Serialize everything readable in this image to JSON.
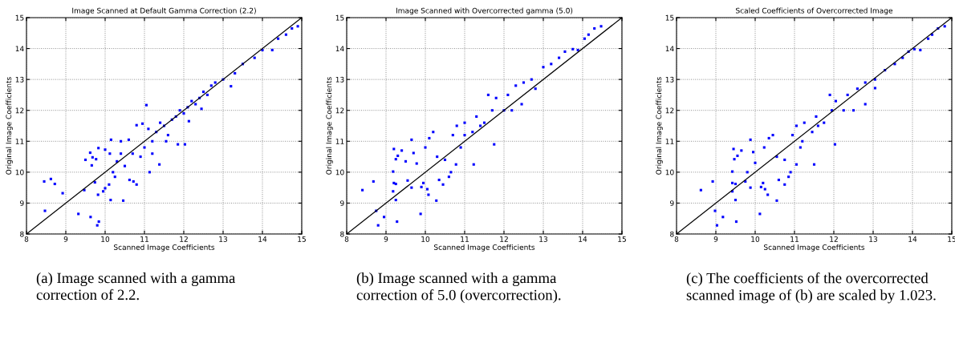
{
  "chart_data": [
    {
      "type": "scatter",
      "title": "Image Scanned at Default Gamma Correction (2.2)",
      "xlabel": "Scanned Image Coefficients",
      "ylabel": "Original Image Coefficients",
      "xlim": [
        8,
        15
      ],
      "ylim": [
        8,
        15
      ],
      "xticks": [
        8,
        9,
        10,
        11,
        12,
        13,
        14,
        15
      ],
      "yticks": [
        8,
        9,
        10,
        11,
        12,
        13,
        14,
        15
      ],
      "grid": true,
      "annotations": [
        "(a) Image scanned with a gamma correction of 2.2."
      ],
      "series": [
        {
          "type": "scatter",
          "marker": "square",
          "color": "#0000ff",
          "x": [
            8.45,
            8.62,
            8.72,
            8.92,
            8.47,
            9.32,
            9.63,
            9.8,
            9.84,
            9.47,
            9.5,
            9.62,
            9.68,
            9.77,
            9.83,
            9.66,
            9.74,
            9.82,
            9.95,
            10.0,
            10.1,
            10.14,
            10.46,
            10.15,
            10.0,
            10.12,
            10.2,
            10.25,
            10.3,
            10.4,
            10.4,
            10.5,
            10.6,
            10.62,
            10.72,
            10.8,
            10.8,
            10.95,
            11.05,
            11.13,
            11.38,
            11.55,
            11.85,
            12.03,
            12.13,
            12.45,
            12.5,
            12.8,
            13.2,
            13.0,
            13.3,
            13.5,
            13.8,
            14.0,
            14.25,
            14.4,
            14.6,
            14.75,
            14.9,
            11.0,
            11.2,
            11.3,
            11.5,
            11.6,
            11.7,
            11.8,
            11.9,
            12.0,
            12.1,
            12.2,
            12.3,
            12.4,
            12.6,
            12.7,
            11.4,
            11.2,
            10.9,
            10.7,
            11.1
          ],
          "values": [
            9.7,
            9.78,
            9.62,
            9.32,
            8.75,
            8.65,
            8.55,
            8.28,
            8.4,
            9.42,
            10.4,
            10.63,
            10.48,
            10.42,
            10.78,
            10.22,
            9.67,
            9.27,
            9.38,
            9.48,
            9.6,
            9.1,
            9.08,
            11.05,
            10.73,
            10.6,
            10.0,
            9.85,
            10.35,
            10.6,
            11.0,
            10.2,
            11.05,
            9.75,
            9.7,
            9.6,
            11.52,
            11.57,
            12.17,
            10.0,
            10.25,
            11.0,
            10.9,
            10.9,
            11.65,
            12.05,
            12.6,
            12.9,
            12.78,
            13.0,
            13.2,
            13.5,
            13.7,
            13.95,
            13.95,
            14.32,
            14.45,
            14.65,
            14.72,
            10.8,
            11.0,
            11.3,
            11.5,
            11.2,
            11.7,
            11.8,
            12.0,
            11.9,
            12.1,
            12.3,
            12.2,
            12.4,
            12.5,
            12.8,
            11.6,
            10.6,
            10.5,
            10.6,
            11.4
          ]
        },
        {
          "type": "line",
          "color": "#000000",
          "x": [
            8,
            15
          ],
          "values": [
            8,
            15
          ]
        }
      ]
    },
    {
      "type": "scatter",
      "title": "Image Scanned with Overcorrected gamma (5.0)",
      "xlabel": "Scanned Image Coefficients",
      "ylabel": "Original Image Coefficients",
      "xlim": [
        8,
        15
      ],
      "ylim": [
        8,
        15
      ],
      "xticks": [
        8,
        9,
        10,
        11,
        12,
        13,
        14,
        15
      ],
      "yticks": [
        8,
        9,
        10,
        11,
        12,
        13,
        14,
        15
      ],
      "grid": true,
      "annotations": [
        "(b) Image scanned with a gamma correction of 5.0 (overcorrection)."
      ],
      "series": [
        {
          "type": "scatter",
          "marker": "square",
          "color": "#0000ff",
          "x": [
            8.4,
            8.68,
            8.75,
            8.95,
            8.8,
            9.28,
            9.88,
            10.28,
            9.25,
            9.18,
            9.2,
            9.25,
            9.18,
            9.2,
            9.25,
            9.3,
            9.4,
            9.5,
            9.65,
            9.7,
            9.55,
            9.65,
            9.78,
            9.9,
            9.95,
            10.05,
            10.08,
            10.0,
            10.1,
            10.2,
            10.3,
            10.35,
            10.45,
            10.6,
            10.65,
            10.78,
            11.23,
            11.75,
            10.5,
            10.7,
            10.8,
            11.0,
            11.2,
            11.3,
            11.5,
            11.6,
            11.7,
            11.8,
            12.0,
            12.1,
            12.2,
            12.3,
            12.45,
            12.5,
            12.7,
            12.8,
            13.0,
            13.2,
            13.4,
            13.55,
            13.75,
            13.88,
            14.05,
            14.15,
            14.3,
            14.47,
            11.0,
            11.4,
            10.9
          ],
          "values": [
            9.42,
            9.7,
            8.75,
            8.55,
            8.28,
            8.4,
            8.65,
            9.08,
            9.1,
            9.38,
            9.65,
            9.62,
            10.02,
            10.75,
            10.42,
            10.53,
            10.7,
            10.35,
            11.05,
            10.62,
            9.73,
            9.5,
            10.28,
            9.52,
            9.65,
            9.45,
            9.27,
            10.8,
            11.1,
            11.3,
            10.5,
            9.75,
            9.6,
            9.85,
            10.0,
            10.25,
            10.25,
            10.9,
            10.4,
            11.2,
            11.5,
            11.6,
            11.3,
            11.8,
            11.6,
            12.5,
            12.0,
            12.4,
            12.0,
            12.5,
            12.0,
            12.8,
            12.2,
            12.9,
            13.0,
            12.7,
            13.4,
            13.5,
            13.7,
            13.9,
            13.98,
            13.95,
            14.32,
            14.45,
            14.65,
            14.72,
            11.2,
            11.5,
            10.8
          ]
        },
        {
          "type": "line",
          "color": "#000000",
          "x": [
            8,
            15
          ],
          "values": [
            8,
            15
          ]
        }
      ]
    },
    {
      "type": "scatter",
      "title": "Scaled Coefficients of Overcorrected Image",
      "xlabel": "Scanned Image Coefficients",
      "ylabel": "Original Image Coefficients",
      "xlim": [
        8,
        15
      ],
      "ylim": [
        8,
        15
      ],
      "xticks": [
        8,
        9,
        10,
        11,
        12,
        13,
        14,
        15
      ],
      "yticks": [
        8,
        9,
        10,
        11,
        12,
        13,
        14,
        15
      ],
      "grid": true,
      "annotations": [
        "(c) The coefficients of the overcorrected scanned image of (b) are scaled by 1.023."
      ],
      "series": [
        {
          "type": "scatter",
          "marker": "square",
          "color": "#0000ff",
          "x": [
            8.62,
            8.92,
            8.98,
            9.03,
            9.18,
            9.52,
            10.12,
            10.55,
            9.5,
            9.42,
            9.42,
            9.5,
            9.42,
            9.45,
            9.47,
            9.55,
            9.65,
            9.8,
            9.88,
            9.95,
            9.75,
            9.88,
            10.0,
            10.15,
            10.2,
            10.25,
            10.32,
            10.23,
            10.35,
            10.45,
            10.55,
            10.6,
            10.75,
            10.85,
            10.9,
            11.05,
            11.5,
            12.03,
            10.75,
            10.95,
            11.05,
            11.25,
            11.45,
            11.55,
            11.75,
            11.9,
            11.95,
            12.05,
            12.25,
            12.35,
            12.5,
            12.6,
            12.8,
            12.8,
            13.05,
            13.05,
            13.3,
            13.55,
            13.75,
            13.9,
            14.05,
            14.2,
            14.4,
            14.5,
            14.65,
            14.82,
            11.2,
            11.6,
            11.15
          ],
          "values": [
            9.42,
            9.7,
            8.75,
            8.28,
            8.55,
            8.4,
            8.65,
            9.08,
            9.1,
            9.38,
            9.65,
            9.62,
            10.02,
            10.75,
            10.42,
            10.53,
            10.7,
            10.0,
            11.05,
            10.65,
            9.7,
            9.5,
            10.3,
            9.52,
            9.65,
            9.45,
            9.27,
            10.8,
            11.1,
            11.2,
            10.5,
            9.75,
            9.6,
            9.85,
            10.0,
            10.25,
            10.25,
            10.9,
            10.4,
            11.2,
            11.5,
            11.6,
            11.3,
            11.8,
            11.6,
            12.5,
            12.0,
            12.3,
            12.0,
            12.5,
            12.0,
            12.7,
            12.2,
            12.9,
            13.0,
            12.72,
            13.3,
            13.5,
            13.7,
            13.9,
            13.98,
            13.95,
            14.32,
            14.45,
            14.65,
            14.72,
            11.0,
            11.5,
            10.8
          ]
        },
        {
          "type": "line",
          "color": "#000000",
          "x": [
            8,
            15
          ],
          "values": [
            8,
            15
          ]
        }
      ]
    }
  ]
}
